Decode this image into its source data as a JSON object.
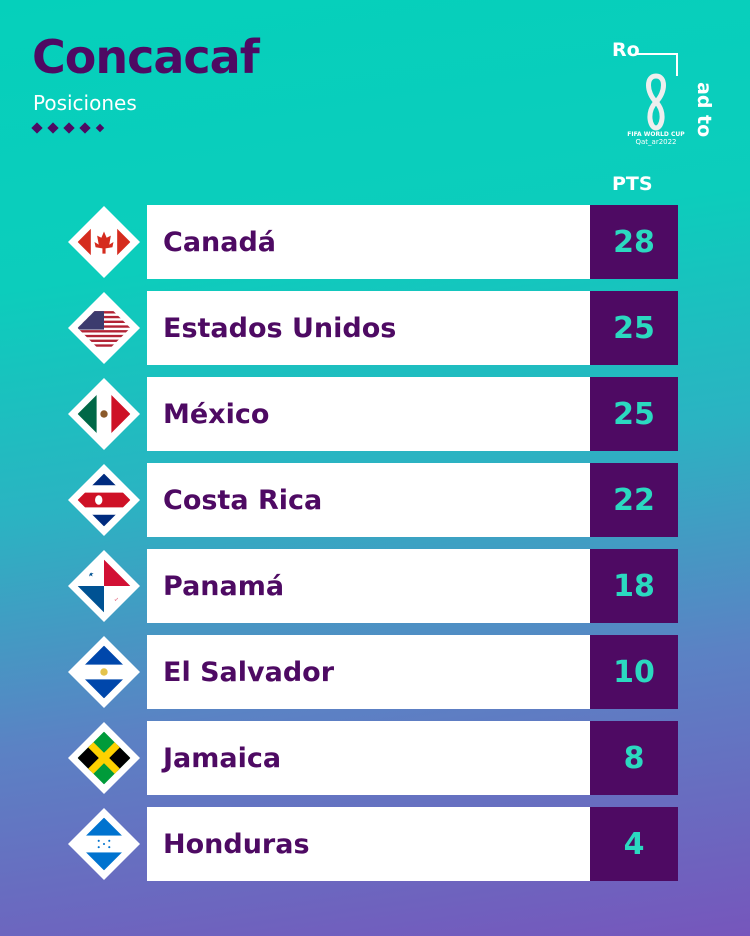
{
  "header": {
    "title": "Concacaf",
    "subtitle": "Posiciones",
    "points_label": "PTS"
  },
  "logo": {
    "road_text_1": "Ro",
    "road_text_2": "ad to",
    "line1": "FIFA WORLD CUP",
    "line2": "Qat_ar2022"
  },
  "colors": {
    "accent": "#4e0a63",
    "points_text": "#2bd9c0"
  },
  "standings": [
    {
      "team": "Canadá",
      "pts": "28",
      "flag": "canada"
    },
    {
      "team": "Estados Unidos",
      "pts": "25",
      "flag": "usa"
    },
    {
      "team": "México",
      "pts": "25",
      "flag": "mexico"
    },
    {
      "team": "Costa Rica",
      "pts": "22",
      "flag": "costa-rica"
    },
    {
      "team": "Panamá",
      "pts": "18",
      "flag": "panama"
    },
    {
      "team": "El Salvador",
      "pts": "10",
      "flag": "el-salvador"
    },
    {
      "team": "Jamaica",
      "pts": "8",
      "flag": "jamaica"
    },
    {
      "team": "Honduras",
      "pts": "4",
      "flag": "honduras"
    }
  ]
}
